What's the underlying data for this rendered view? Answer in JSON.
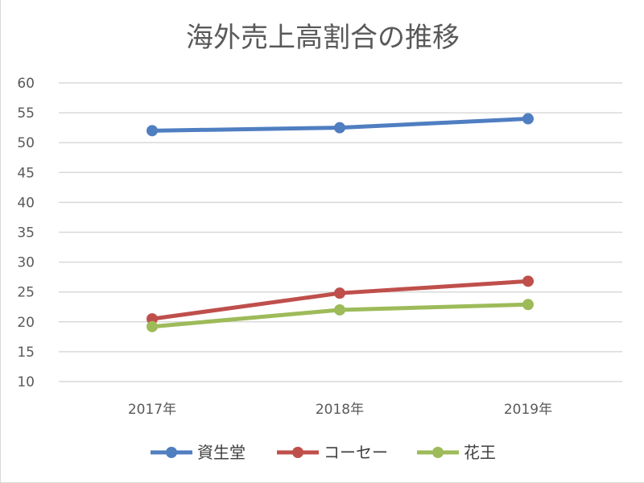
{
  "chart_data": {
    "type": "line",
    "title": "海外売上高割合の推移",
    "categories": [
      "2017年",
      "2018年",
      "2019年"
    ],
    "series": [
      {
        "name": "資生堂",
        "values": [
          52.0,
          52.5,
          54.0
        ],
        "color": "#4f7ec1"
      },
      {
        "name": "コーセー",
        "values": [
          20.5,
          24.8,
          26.8
        ],
        "color": "#bf4f4b"
      },
      {
        "name": "花王",
        "values": [
          19.2,
          22.0,
          22.9
        ],
        "color": "#9dbb59"
      }
    ],
    "ylim": [
      10,
      60
    ],
    "yticks": [
      10,
      15,
      20,
      25,
      30,
      35,
      40,
      45,
      50,
      55,
      60
    ],
    "grid": true,
    "legend": "bottom"
  }
}
